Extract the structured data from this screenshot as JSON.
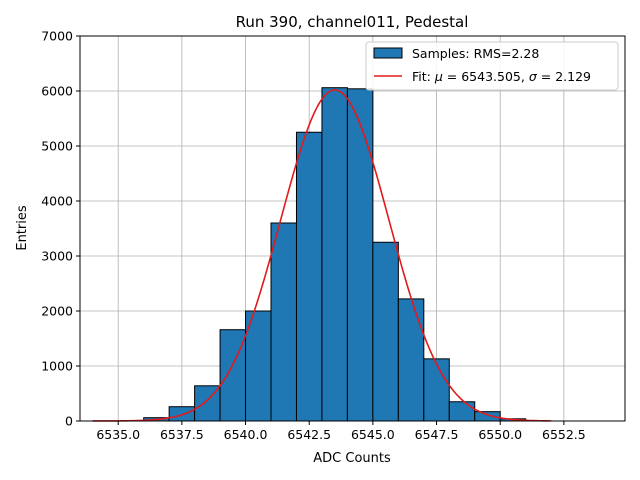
{
  "chart_data": {
    "type": "bar",
    "title": "Run 390, channel011, Pedestal",
    "xlabel": "ADC Counts",
    "ylabel": "Entries",
    "xlim": [
      6533.5,
      6554.9
    ],
    "ylim": [
      0,
      7000
    ],
    "x_ticks": [
      6535.0,
      6537.5,
      6540.0,
      6542.5,
      6545.0,
      6547.5,
      6550.0,
      6552.5
    ],
    "x_tick_labels": [
      "6535.0",
      "6537.5",
      "6540.0",
      "6542.5",
      "6545.0",
      "6547.5",
      "6550.0",
      "6552.5"
    ],
    "y_ticks": [
      0,
      1000,
      2000,
      3000,
      4000,
      5000,
      6000,
      7000
    ],
    "y_tick_labels": [
      "0",
      "1000",
      "2000",
      "3000",
      "4000",
      "5000",
      "6000",
      "7000"
    ],
    "grid": true,
    "legend_position": "top-right",
    "histogram": {
      "name": "Samples: RMS=2.28",
      "color": "#1f77b4",
      "edge_color": "#000000",
      "bin_edges": [
        6536,
        6537,
        6538,
        6539,
        6540,
        6541,
        6542,
        6543,
        6544,
        6545,
        6546,
        6547,
        6548,
        6549,
        6550,
        6551
      ],
      "counts": [
        60,
        260,
        640,
        1660,
        2000,
        3600,
        5250,
        6060,
        6040,
        3250,
        2220,
        1130,
        350,
        170,
        40
      ]
    },
    "fit": {
      "legend_prefix": "Fit: ",
      "mu_symbol": "μ",
      "mu_value": "6543.505",
      "sigma_symbol": "σ",
      "sigma_value": "2.129",
      "mu": 6543.505,
      "sigma": 2.129,
      "amplitude": 6020,
      "x_range": [
        6534.0,
        6552.0
      ],
      "color": "#e31a1c"
    }
  }
}
